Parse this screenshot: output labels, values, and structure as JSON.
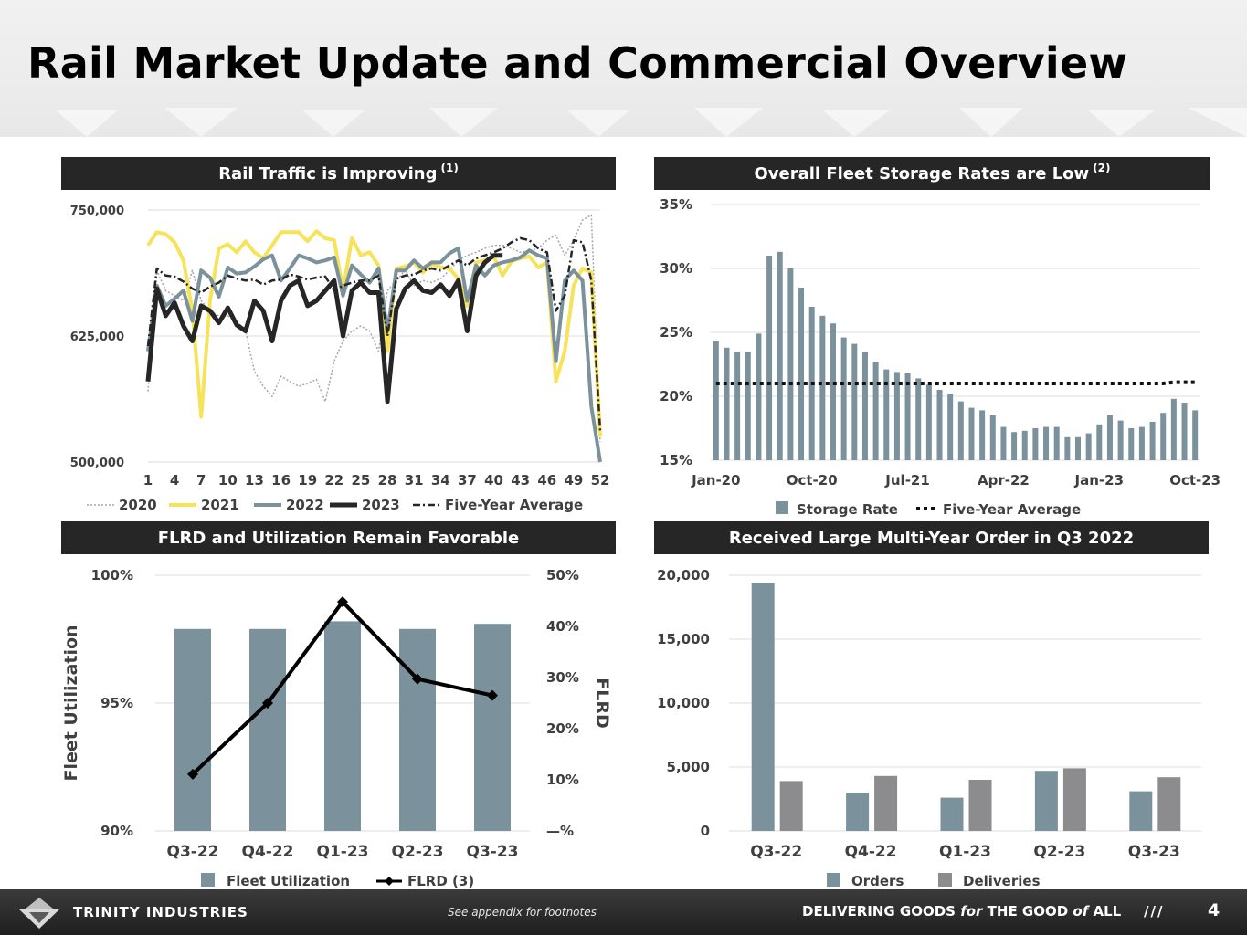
{
  "title": "Rail Market Update and Commercial Overview",
  "panels": {
    "traffic": {
      "title": "Rail Traffic is Improving",
      "sup": "(1)"
    },
    "storage": {
      "title": "Overall Fleet Storage Rates are Low",
      "sup": "(2)"
    },
    "flrd": {
      "title": "FLRD and Utilization Remain Favorable"
    },
    "orders": {
      "title": "Received Large Multi-Year Order in Q3 2022"
    }
  },
  "footer": {
    "brand": "TRINITY INDUSTRIES",
    "note": "See appendix for footnotes",
    "tag_1": "DELIVERING GOODS ",
    "tag_for": "for",
    "tag_2": " THE GOOD ",
    "tag_of": "of",
    "tag_3": " ALL",
    "slashes": "///",
    "page": "4"
  },
  "colors": {
    "teal": "#7b929c",
    "yellow": "#f6e35a",
    "black": "#262626",
    "grey": "#8c8c8e",
    "dotted": "#a6a6a6"
  },
  "chart_data": [
    {
      "type": "line",
      "id": "traffic",
      "ylim": [
        500000,
        750000
      ],
      "yticks": [
        500000,
        625000,
        750000
      ],
      "ytick_labels": [
        "500,000",
        "625,000",
        "750,000"
      ],
      "xlim": [
        1,
        52
      ],
      "xticks": [
        1,
        4,
        7,
        10,
        13,
        16,
        19,
        22,
        25,
        28,
        31,
        34,
        37,
        40,
        43,
        46,
        49,
        52
      ],
      "series": [
        {
          "name": "2020",
          "style": "dotted",
          "color": "#a6a6a6",
          "values": [
            570000,
            690000,
            670000,
            665000,
            660000,
            690000,
            660000,
            650000,
            645000,
            645000,
            640000,
            630000,
            590000,
            575000,
            565000,
            585000,
            580000,
            575000,
            578000,
            582000,
            560000,
            600000,
            620000,
            630000,
            635000,
            630000,
            610000,
            670000,
            680000,
            690000,
            675000,
            680000,
            678000,
            682000,
            690000,
            700000,
            705000,
            708000,
            712000,
            715000,
            715000,
            712000,
            708000,
            710000,
            712000,
            720000,
            725000,
            705000,
            720000,
            740000,
            745000,
            520000
          ]
        },
        {
          "name": "2021",
          "style": "solid",
          "color": "#f6e35a",
          "values": [
            715000,
            728000,
            726000,
            718000,
            700000,
            650000,
            545000,
            660000,
            712000,
            716000,
            708000,
            719000,
            708000,
            702000,
            715000,
            728000,
            728000,
            728000,
            719000,
            729000,
            722000,
            720000,
            670000,
            722000,
            705000,
            708000,
            695000,
            610000,
            692000,
            694000,
            698000,
            688000,
            696000,
            693000,
            692000,
            682000,
            655000,
            698000,
            700000,
            704000,
            685000,
            699000,
            702000,
            704000,
            693000,
            698000,
            580000,
            610000,
            675000,
            692000,
            688000,
            525000
          ]
        },
        {
          "name": "2022",
          "style": "solid",
          "color": "#7b929c",
          "values": [
            610000,
            675000,
            655000,
            662000,
            670000,
            640000,
            690000,
            683000,
            664000,
            693000,
            687000,
            688000,
            694000,
            701000,
            705000,
            680000,
            692000,
            705000,
            702000,
            698000,
            700000,
            703000,
            665000,
            695000,
            686000,
            678000,
            692000,
            630000,
            690000,
            690000,
            700000,
            692000,
            698000,
            698000,
            707000,
            712000,
            660000,
            695000,
            685000,
            695000,
            698000,
            700000,
            703000,
            710000,
            705000,
            702000,
            600000,
            680000,
            690000,
            680000,
            555000,
            500000
          ]
        },
        {
          "name": "2023",
          "style": "solid",
          "color": "#262626",
          "values": [
            580000,
            672000,
            645000,
            658000,
            635000,
            620000,
            655000,
            650000,
            638000,
            653000,
            636000,
            630000,
            660000,
            650000,
            620000,
            660000,
            675000,
            680000,
            655000,
            660000,
            670000,
            680000,
            625000,
            670000,
            678000,
            668000,
            668000,
            560000,
            652000,
            672000,
            680000,
            670000,
            668000,
            676000,
            665000,
            680000,
            630000,
            685000,
            698000,
            705000,
            705000
          ]
        },
        {
          "name": "Five-Year Average",
          "style": "dashdot",
          "color": "#262626",
          "values": [
            615000,
            692000,
            685000,
            684000,
            679000,
            672000,
            668000,
            674000,
            678000,
            685000,
            682000,
            680000,
            681000,
            676000,
            680000,
            681000,
            686000,
            684000,
            681000,
            683000,
            684000,
            670000,
            675000,
            678000,
            680000,
            680000,
            685000,
            625000,
            682000,
            685000,
            686000,
            690000,
            692000,
            690000,
            695000,
            700000,
            695000,
            702000,
            705000,
            708000,
            712000,
            718000,
            722000,
            720000,
            712000,
            708000,
            650000,
            665000,
            720000,
            718000,
            680000,
            530000
          ]
        }
      ],
      "legend": [
        "2020",
        "2021",
        "2022",
        "2023",
        "Five-Year Average"
      ]
    },
    {
      "type": "bar",
      "id": "storage",
      "ylim": [
        15,
        35
      ],
      "yticks": [
        15,
        20,
        25,
        30,
        35
      ],
      "ytick_labels": [
        "15%",
        "20%",
        "25%",
        "30%",
        "35%"
      ],
      "x_tick_labels": [
        "Jan-20",
        "Oct-20",
        "Jul-21",
        "Apr-22",
        "Jan-23",
        "Oct-23"
      ],
      "x_tick_index": [
        0,
        9,
        18,
        27,
        36,
        45
      ],
      "series": [
        {
          "name": "Storage Rate",
          "color": "#7b929c",
          "values": [
            24.3,
            23.8,
            23.5,
            23.5,
            24.9,
            31.0,
            31.3,
            30.0,
            28.5,
            27.0,
            26.3,
            25.7,
            24.6,
            24.1,
            23.5,
            22.7,
            22.1,
            21.9,
            21.8,
            21.4,
            20.9,
            20.5,
            20.2,
            19.6,
            19.1,
            18.9,
            18.5,
            17.6,
            17.2,
            17.3,
            17.5,
            17.6,
            17.6,
            16.8,
            16.8,
            17.1,
            17.8,
            18.5,
            18.1,
            17.5,
            17.6,
            18.0,
            18.7,
            19.8,
            19.5,
            18.9
          ]
        },
        {
          "name": "Five-Year Average",
          "style": "dotted",
          "color": "#111111",
          "values": [
            21.0,
            21.0,
            21.0,
            21.0,
            21.0,
            21.0,
            21.0,
            21.0,
            21.0,
            21.0,
            21.0,
            21.0,
            21.0,
            21.0,
            21.0,
            21.0,
            21.0,
            21.0,
            21.0,
            21.0,
            21.0,
            21.0,
            21.0,
            21.0,
            21.0,
            21.0,
            21.0,
            21.0,
            21.0,
            21.0,
            21.0,
            21.0,
            21.0,
            21.0,
            21.0,
            21.0,
            21.0,
            21.0,
            21.0,
            21.0,
            21.0,
            21.0,
            21.0,
            21.1,
            21.1,
            21.1
          ]
        }
      ],
      "legend": [
        "Storage Rate",
        "Five-Year Average"
      ]
    },
    {
      "type": "bar",
      "id": "flrd",
      "categories": [
        "Q3-22",
        "Q4-22",
        "Q1-23",
        "Q2-23",
        "Q3-23"
      ],
      "ylabel": "Fleet Utilization",
      "y2label": "FLRD",
      "ylim": [
        90,
        100
      ],
      "yticks": [
        90,
        95,
        100
      ],
      "ytick_labels": [
        "90%",
        "95%",
        "100%"
      ],
      "y2lim": [
        0,
        50
      ],
      "y2ticks": [
        0,
        10,
        20,
        30,
        40,
        50
      ],
      "y2tick_labels": [
        "—%",
        "10%",
        "20%",
        "30%",
        "40%",
        "50%"
      ],
      "series": [
        {
          "name": "Fleet Utilization",
          "type": "bar",
          "axis": "left",
          "color": "#7b929c",
          "values": [
            97.9,
            97.9,
            98.2,
            97.9,
            98.1
          ]
        },
        {
          "name": "FLRD (3)",
          "type": "line",
          "axis": "right",
          "color": "#000000",
          "values": [
            11.1,
            25.0,
            44.8,
            29.7,
            26.5
          ]
        }
      ],
      "legend": [
        "Fleet Utilization",
        "FLRD (3)"
      ]
    },
    {
      "type": "bar",
      "id": "orders",
      "categories": [
        "Q3-22",
        "Q4-22",
        "Q1-23",
        "Q2-23",
        "Q3-23"
      ],
      "ylim": [
        0,
        20000
      ],
      "yticks": [
        0,
        5000,
        10000,
        15000,
        20000
      ],
      "ytick_labels": [
        "0",
        "5,000",
        "10,000",
        "15,000",
        "20,000"
      ],
      "series": [
        {
          "name": "Orders",
          "color": "#7b929c",
          "values": [
            19400,
            3000,
            2600,
            4700,
            3100
          ]
        },
        {
          "name": "Deliveries",
          "color": "#8c8c8e",
          "values": [
            3900,
            4300,
            4000,
            4900,
            4200
          ]
        }
      ],
      "legend": [
        "Orders",
        "Deliveries"
      ]
    }
  ]
}
